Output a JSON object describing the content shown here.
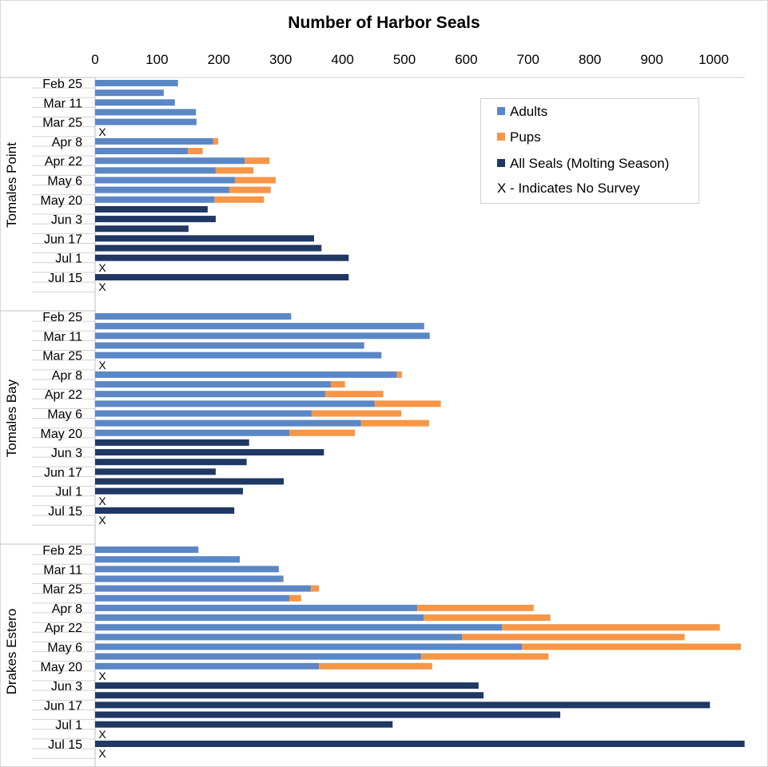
{
  "chart_data": {
    "type": "bar",
    "orientation": "horizontal",
    "stacked": true,
    "title": "Number of Harbor Seals",
    "xlim": [
      0,
      1050
    ],
    "x_ticks": [
      0,
      100,
      200,
      300,
      400,
      500,
      600,
      700,
      800,
      900,
      1000
    ],
    "x_axis_position": "top",
    "grid": false,
    "legend_position": "top-right",
    "legend": [
      "Adults",
      "Pups",
      "All Seals (Molting Season)",
      "X - Indicates No Survey"
    ],
    "no_survey_marker": "X",
    "colors": {
      "adults": "#5b87c6",
      "pups": "#f79646",
      "all_seals": "#1f3864"
    },
    "category_labels": [
      "Feb 25",
      "",
      "Mar 11",
      "",
      "Mar 25",
      "",
      "Apr 8",
      "",
      "Apr 22",
      "",
      "May 6",
      "",
      "May 20",
      "",
      "Jun 3",
      "",
      "Jun 17",
      "",
      "Jul 1",
      "",
      "Jul 15",
      ""
    ],
    "groups": [
      {
        "name": "Tomales Point",
        "adults": [
          134,
          111,
          129,
          163,
          164,
          null,
          191,
          150,
          242,
          195,
          226,
          217,
          193,
          null,
          null,
          null,
          null,
          null,
          null,
          null,
          null,
          null
        ],
        "pups": [
          null,
          null,
          null,
          null,
          null,
          null,
          8,
          24,
          40,
          61,
          66,
          67,
          80,
          null,
          null,
          null,
          null,
          null,
          null,
          null,
          null,
          null
        ],
        "all_seals": [
          null,
          null,
          null,
          null,
          null,
          null,
          null,
          null,
          null,
          null,
          null,
          null,
          null,
          182,
          195,
          151,
          354,
          366,
          410,
          null,
          410,
          null
        ],
        "no_survey": [
          false,
          false,
          false,
          false,
          false,
          true,
          false,
          false,
          false,
          false,
          false,
          false,
          false,
          false,
          false,
          false,
          false,
          false,
          false,
          true,
          false,
          true
        ]
      },
      {
        "name": "Tomales Bay",
        "adults": [
          317,
          532,
          541,
          435,
          463,
          null,
          488,
          381,
          372,
          452,
          350,
          430,
          314,
          null,
          null,
          null,
          null,
          null,
          null,
          null,
          null,
          null
        ],
        "pups": [
          null,
          null,
          null,
          null,
          null,
          null,
          8,
          23,
          94,
          107,
          145,
          110,
          106,
          null,
          null,
          null,
          null,
          null,
          null,
          null,
          null,
          null
        ],
        "all_seals": [
          null,
          null,
          null,
          null,
          null,
          null,
          null,
          null,
          null,
          null,
          null,
          null,
          null,
          249,
          370,
          245,
          195,
          305,
          239,
          null,
          225,
          null
        ],
        "no_survey": [
          false,
          false,
          false,
          false,
          false,
          true,
          false,
          false,
          false,
          false,
          false,
          false,
          false,
          false,
          false,
          false,
          false,
          false,
          false,
          true,
          false,
          true
        ]
      },
      {
        "name": "Drakes Estero",
        "adults": [
          167,
          234,
          297,
          304,
          349,
          314,
          521,
          531,
          658,
          593,
          690,
          527,
          362,
          null,
          null,
          null,
          null,
          null,
          null,
          null,
          null,
          null
        ],
        "pups": [
          null,
          null,
          null,
          1,
          13,
          19,
          188,
          205,
          352,
          360,
          354,
          206,
          183,
          null,
          null,
          null,
          null,
          null,
          null,
          null,
          null,
          null
        ],
        "all_seals": [
          null,
          null,
          null,
          null,
          null,
          null,
          null,
          null,
          null,
          null,
          null,
          null,
          null,
          null,
          620,
          628,
          994,
          752,
          481,
          null,
          1050,
          null
        ],
        "no_survey": [
          false,
          false,
          false,
          false,
          false,
          false,
          false,
          false,
          false,
          false,
          false,
          false,
          false,
          true,
          false,
          false,
          false,
          false,
          false,
          true,
          false,
          true
        ]
      }
    ]
  }
}
